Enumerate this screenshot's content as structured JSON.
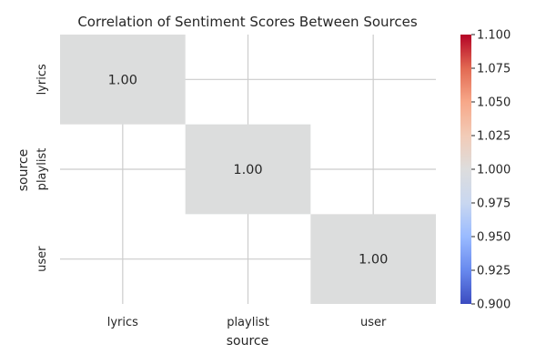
{
  "chart_data": {
    "type": "heatmap",
    "title": "Correlation of Sentiment Scores Between Sources",
    "xlabel": "source",
    "ylabel": "source",
    "x_categories": [
      "lyrics",
      "playlist",
      "user"
    ],
    "y_categories": [
      "lyrics",
      "playlist",
      "user"
    ],
    "values": [
      [
        1.0,
        null,
        null
      ],
      [
        null,
        1.0,
        null
      ],
      [
        null,
        null,
        1.0
      ]
    ],
    "annotations": [
      [
        "1.00",
        "",
        ""
      ],
      [
        "",
        "1.00",
        ""
      ],
      [
        "",
        "",
        "1.00"
      ]
    ],
    "colormap": "coolwarm",
    "cell_color": "#dcdddd",
    "colorbar": {
      "min": 0.9,
      "max": 1.1,
      "ticks": [
        "0.900",
        "0.925",
        "0.950",
        "0.975",
        "1.000",
        "1.025",
        "1.050",
        "1.075",
        "1.100"
      ],
      "colors": [
        "#3b4cc0",
        "#6889ee",
        "#9abbff",
        "#c9d7f0",
        "#dddddd",
        "#f2cbb7",
        "#f7a889",
        "#e26952",
        "#b40426"
      ]
    },
    "grid": true,
    "legend": "colorbar-right"
  }
}
